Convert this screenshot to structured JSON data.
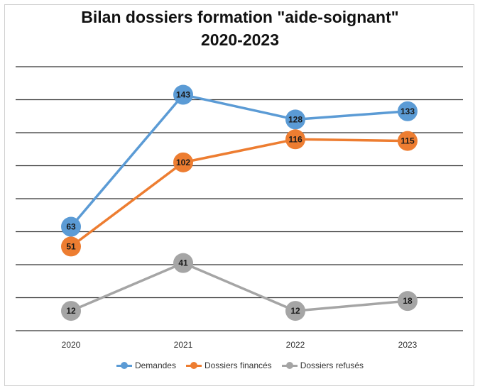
{
  "chart_data": {
    "type": "line",
    "title": "Bilan dossiers formation \"aide-soignant\"",
    "subtitle": "2020-2023",
    "categories": [
      "2020",
      "2021",
      "2022",
      "2023"
    ],
    "series": [
      {
        "name": "Demandes",
        "values": [
          63,
          143,
          128,
          133
        ],
        "color": "#5b9bd5"
      },
      {
        "name": "Dossiers financés",
        "values": [
          51,
          102,
          116,
          115
        ],
        "color": "#ed7d31"
      },
      {
        "name": "Dossiers refusés",
        "values": [
          12,
          41,
          12,
          18
        ],
        "color": "#a5a5a5"
      }
    ],
    "ylim": [
      0,
      160
    ],
    "grid": true,
    "y_tick_labels_visible": false,
    "legend_position": "bottom",
    "data_labels": true
  }
}
